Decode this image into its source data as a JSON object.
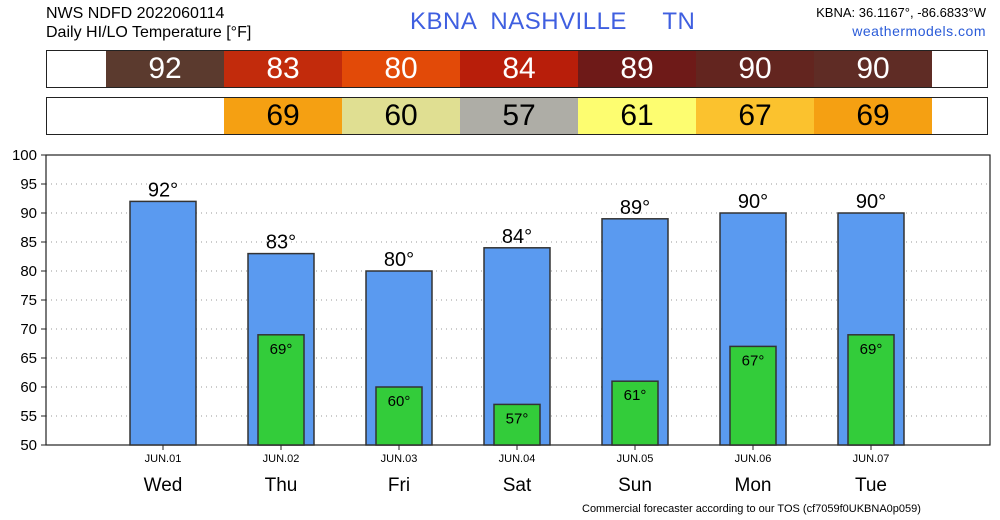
{
  "header": {
    "line1": "NWS NDFD 2022060114",
    "line2": "Daily HI/LO Temperature [°F]",
    "station": "KBNA  NASHVILLE     TN",
    "coords": "KBNA: 36.1167°, -86.6833°W",
    "site": "weathermodels.com"
  },
  "hi_strip": {
    "cells": [
      {
        "label": "92",
        "color": "#5b3a2e",
        "text_color": "#ffffff"
      },
      {
        "label": "83",
        "color": "#c22b0c",
        "text_color": "#ffffff"
      },
      {
        "label": "80",
        "color": "#e24a08",
        "text_color": "#ffffff"
      },
      {
        "label": "84",
        "color": "#b81e0a",
        "text_color": "#ffffff"
      },
      {
        "label": "89",
        "color": "#6e1a18",
        "text_color": "#ffffff"
      },
      {
        "label": "90",
        "color": "#63251f",
        "text_color": "#ffffff"
      },
      {
        "label": "90",
        "color": "#5f2c25",
        "text_color": "#ffffff"
      }
    ]
  },
  "lo_strip": {
    "cells": [
      {
        "label": "",
        "color": "#ffffff",
        "text_color": "#000000"
      },
      {
        "label": "69",
        "color": "#f5a012",
        "text_color": "#000000"
      },
      {
        "label": "60",
        "color": "#e0df92",
        "text_color": "#000000"
      },
      {
        "label": "57",
        "color": "#aeada6",
        "text_color": "#000000"
      },
      {
        "label": "61",
        "color": "#fdfd70",
        "text_color": "#000000"
      },
      {
        "label": "67",
        "color": "#fbc22e",
        "text_color": "#000000"
      },
      {
        "label": "69",
        "color": "#f5a012",
        "text_color": "#000000"
      }
    ]
  },
  "chart_data": {
    "type": "bar",
    "categories": [
      "Wed",
      "Thu",
      "Fri",
      "Sat",
      "Sun",
      "Mon",
      "Tue"
    ],
    "dates": [
      "JUN.01",
      "JUN.02",
      "JUN.03",
      "JUN.04",
      "JUN.05",
      "JUN.06",
      "JUN.07"
    ],
    "series": [
      {
        "values": [
          92,
          83,
          80,
          84,
          89,
          90,
          90
        ],
        "labels": [
          "92°",
          "83°",
          "80°",
          "84°",
          "89°",
          "90°",
          "90°"
        ],
        "color": "#5a9af0"
      },
      {
        "values": [
          null,
          69,
          60,
          57,
          61,
          67,
          69
        ],
        "labels": [
          "",
          "69°",
          "60°",
          "57°",
          "61°",
          "67°",
          "69°"
        ],
        "color": "#33cc3a"
      }
    ],
    "ylim": [
      50,
      100
    ],
    "yticks": [
      "50",
      "55",
      "60",
      "65",
      "70",
      "75",
      "80",
      "85",
      "90",
      "95",
      "100"
    ],
    "grid": true
  },
  "footer": "Commercial forecaster according to our TOS (cf7059f0UKBNA0p059)"
}
